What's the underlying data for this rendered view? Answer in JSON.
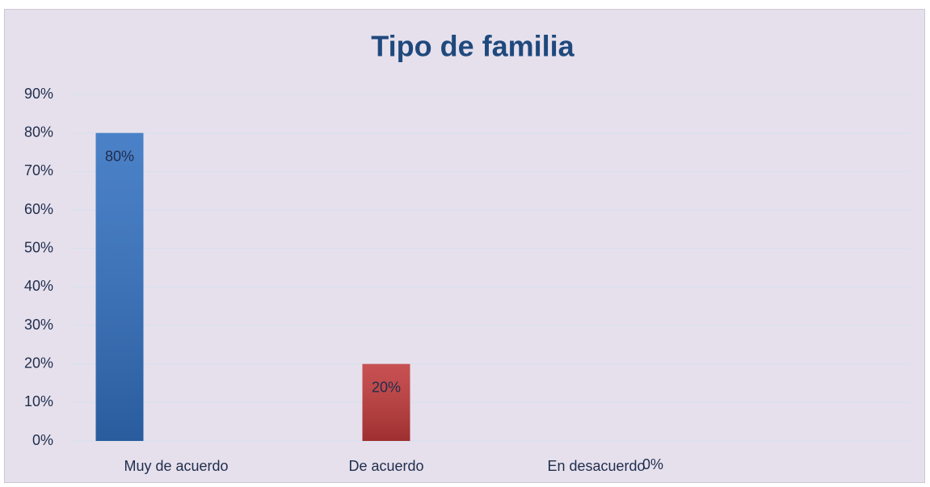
{
  "chart_data": {
    "type": "bar",
    "title": "Tipo de familia",
    "categories": [
      "Muy de acuerdo",
      "De acuerdo",
      "En desacuerdo",
      null
    ],
    "values": [
      80,
      20,
      0,
      null
    ],
    "value_labels": [
      "80%",
      "20%",
      "0%",
      null
    ],
    "colors": [
      "#3270c0",
      "#c0393a",
      "#8fb04c",
      null
    ],
    "ylim": [
      0,
      90
    ],
    "yticks": [
      {
        "value": 0,
        "label": "0%"
      },
      {
        "value": 10,
        "label": "10%"
      },
      {
        "value": 20,
        "label": "20%"
      },
      {
        "value": 30,
        "label": "30%"
      },
      {
        "value": 40,
        "label": "40%"
      },
      {
        "value": 50,
        "label": "50%"
      },
      {
        "value": 60,
        "label": "60%"
      },
      {
        "value": 70,
        "label": "70%"
      },
      {
        "value": 80,
        "label": "80%"
      },
      {
        "value": 90,
        "label": "90%"
      }
    ],
    "grid": true
  }
}
